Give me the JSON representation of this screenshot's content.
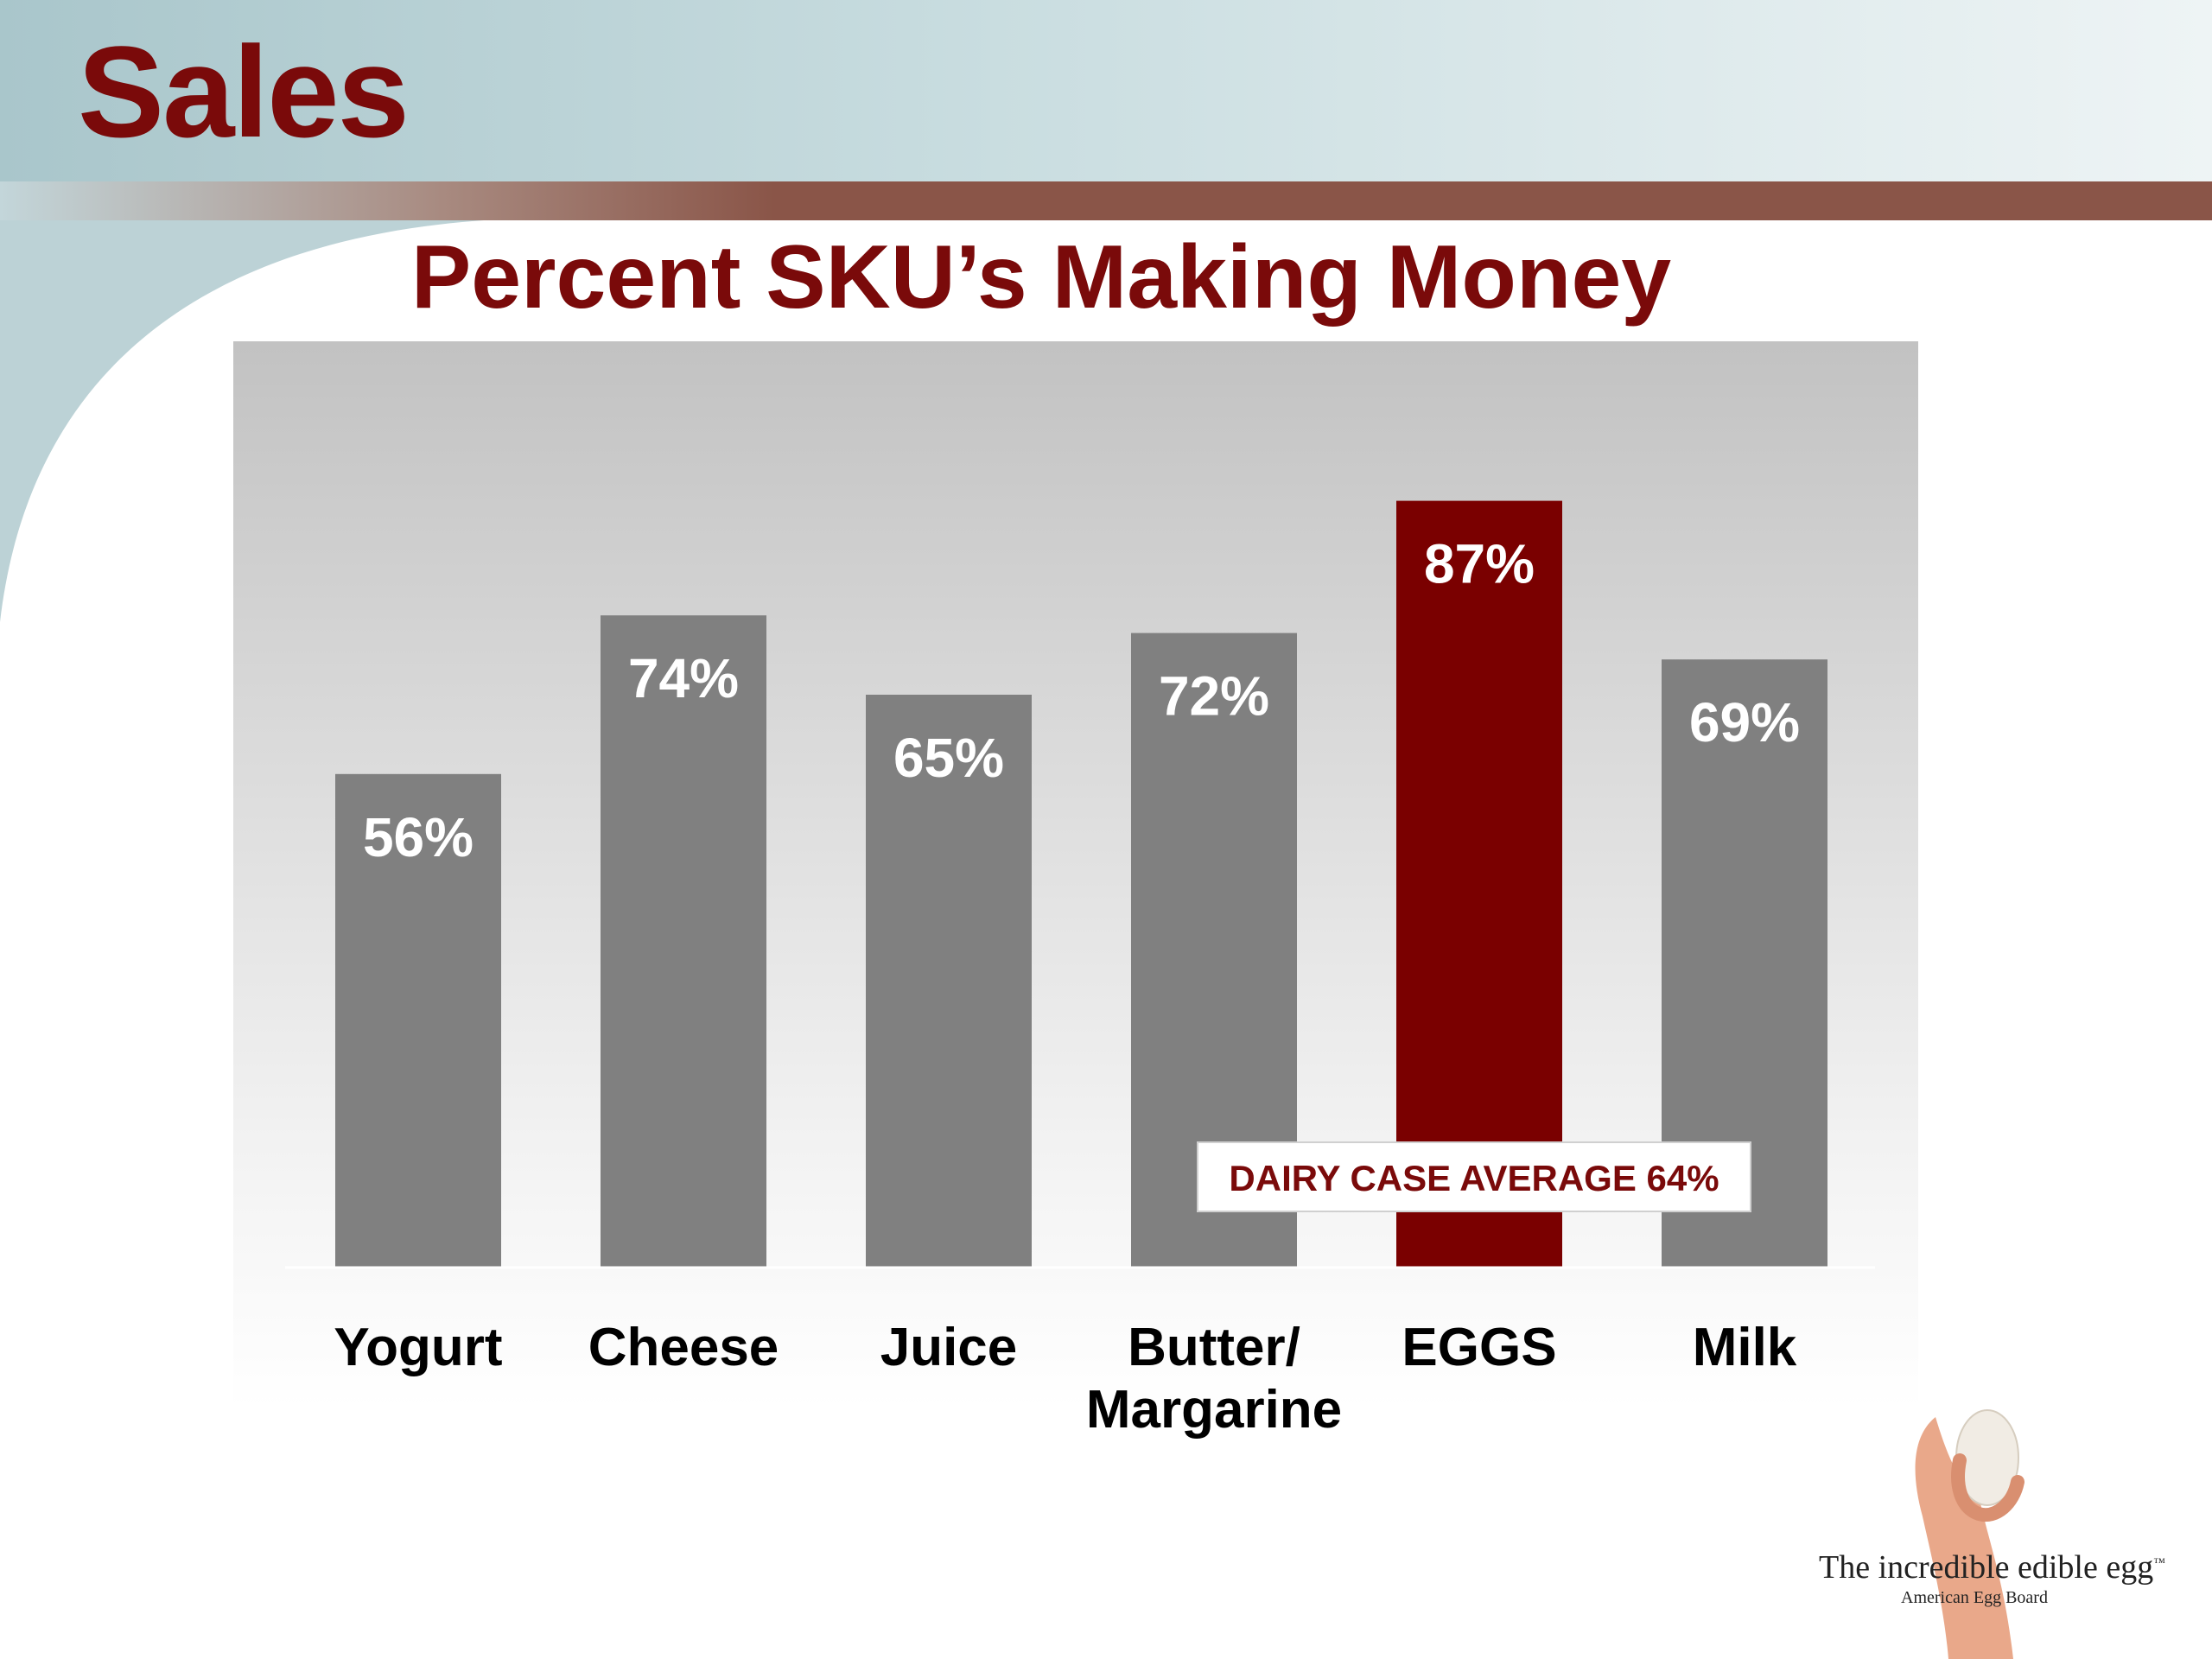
{
  "slide": {
    "title": "Sales",
    "logo_text": "The incredible edible egg",
    "logo_tm": "™",
    "logo_sub": "American Egg Board"
  },
  "colors": {
    "accent": "#7a0a0a",
    "bar_default": "#808080",
    "bar_highlight": "#7a0000",
    "header_band": "#c3d6da",
    "stripe": "#8a5548"
  },
  "chart_data": {
    "type": "bar",
    "title": "Percent SKU’s Making Money",
    "categories": [
      "Yogurt",
      "Cheese",
      "Juice",
      "Butter/ Margarine",
      "EGGS",
      "Milk"
    ],
    "category_lines": [
      [
        "Yogurt"
      ],
      [
        "Cheese"
      ],
      [
        "Juice"
      ],
      [
        "Butter/",
        "Margarine"
      ],
      [
        "EGGS"
      ],
      [
        "Milk"
      ]
    ],
    "values": [
      56,
      74,
      65,
      72,
      87,
      69
    ],
    "value_labels": [
      "56%",
      "74%",
      "65%",
      "72%",
      "87%",
      "69%"
    ],
    "highlight_index": 4,
    "unit": "%",
    "ylim": [
      0,
      100
    ],
    "grid": false,
    "legend": "none",
    "annotation": {
      "text": "DAIRY CASE AVERAGE 64%",
      "value": 64
    }
  }
}
